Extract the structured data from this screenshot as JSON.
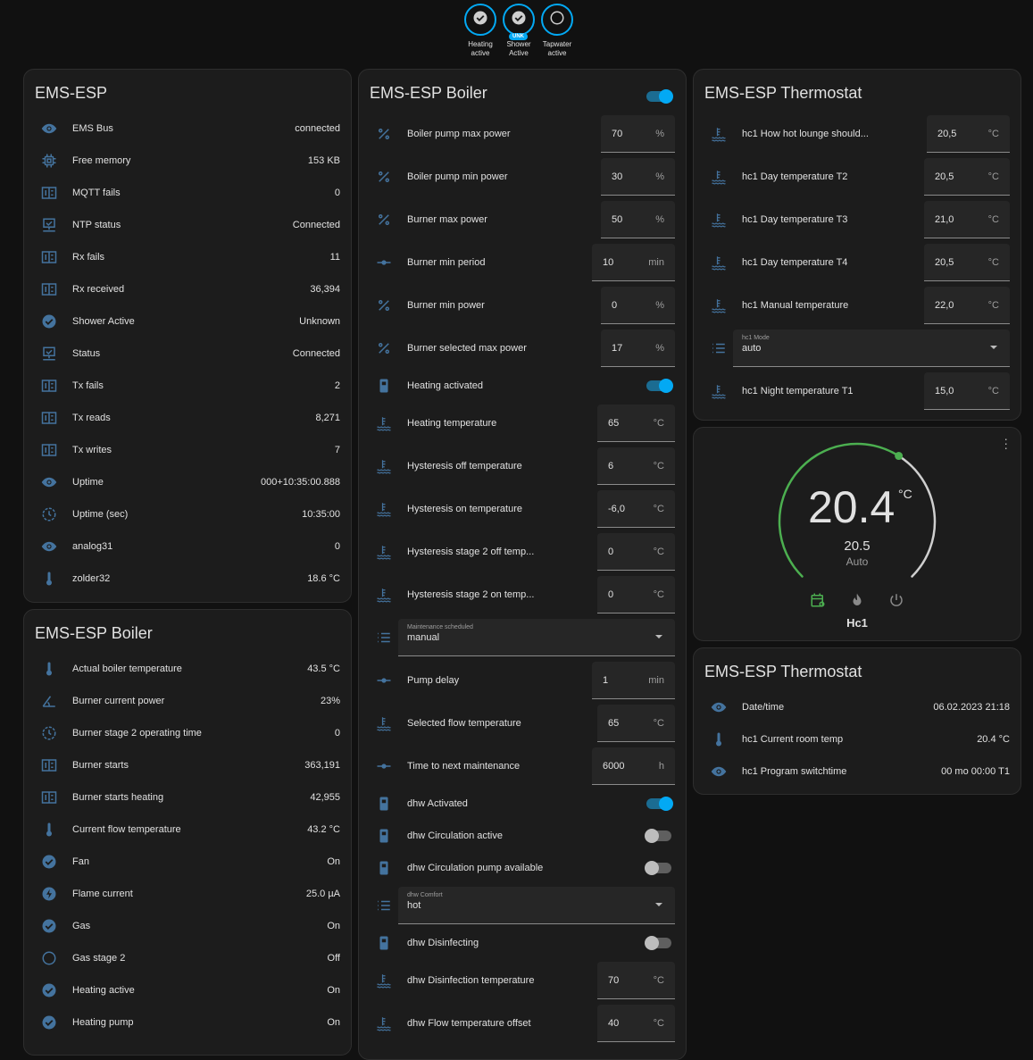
{
  "colors": {
    "icon": "#44739e",
    "accent": "#03a9f4",
    "heat": "#4caf50"
  },
  "badges": [
    {
      "label": "Heating active",
      "icon": "check-circle"
    },
    {
      "label": "Shower Active",
      "icon": "check-circle",
      "tag": "UNK"
    },
    {
      "label": "Tapwater active",
      "icon": "circle-outline"
    }
  ],
  "col1": {
    "card1": {
      "title": "EMS-ESP",
      "rows": [
        {
          "icon": "eye",
          "name": "EMS Bus",
          "value": "connected"
        },
        {
          "icon": "chip",
          "name": "Free memory",
          "value": "153 KB"
        },
        {
          "icon": "counter",
          "name": "MQTT fails",
          "value": "0"
        },
        {
          "icon": "monitor-check",
          "name": "NTP status",
          "value": "Connected"
        },
        {
          "icon": "counter",
          "name": "Rx fails",
          "value": "11"
        },
        {
          "icon": "counter",
          "name": "Rx received",
          "value": "36,394"
        },
        {
          "icon": "check-circle",
          "name": "Shower Active",
          "value": "Unknown"
        },
        {
          "icon": "monitor-check",
          "name": "Status",
          "value": "Connected"
        },
        {
          "icon": "counter",
          "name": "Tx fails",
          "value": "2"
        },
        {
          "icon": "counter",
          "name": "Tx reads",
          "value": "8,271"
        },
        {
          "icon": "counter",
          "name": "Tx writes",
          "value": "7"
        },
        {
          "icon": "eye",
          "name": "Uptime",
          "value": "000+10:35:00.888"
        },
        {
          "icon": "clock",
          "name": "Uptime (sec)",
          "value": "10:35:00"
        },
        {
          "icon": "eye",
          "name": "analog31",
          "value": "0"
        },
        {
          "icon": "thermometer",
          "name": "zolder32",
          "value": "18.6 °C"
        }
      ]
    },
    "card2": {
      "title": "EMS-ESP Boiler",
      "rows": [
        {
          "icon": "thermometer",
          "name": "Actual boiler temperature",
          "value": "43.5 °C"
        },
        {
          "icon": "angle",
          "name": "Burner current power",
          "value": "23%"
        },
        {
          "icon": "clock",
          "name": "Burner stage 2 operating time",
          "value": "0"
        },
        {
          "icon": "counter",
          "name": "Burner starts",
          "value": "363,191"
        },
        {
          "icon": "counter",
          "name": "Burner starts heating",
          "value": "42,955"
        },
        {
          "icon": "thermometer",
          "name": "Current flow temperature",
          "value": "43.2 °C"
        },
        {
          "icon": "check-circle",
          "name": "Fan",
          "value": "On"
        },
        {
          "icon": "flash-circle",
          "name": "Flame current",
          "value": "25.0 µA"
        },
        {
          "icon": "check-circle",
          "name": "Gas",
          "value": "On"
        },
        {
          "icon": "circle-outline",
          "name": "Gas stage 2",
          "value": "Off"
        },
        {
          "icon": "check-circle",
          "name": "Heating active",
          "value": "On"
        },
        {
          "icon": "check-circle",
          "name": "Heating pump",
          "value": "On"
        }
      ]
    }
  },
  "col2": {
    "title": "EMS-ESP Boiler",
    "header_toggle": true,
    "rows": [
      {
        "type": "num",
        "icon": "percent",
        "name": "Boiler pump max power",
        "value": "70",
        "unit": "%"
      },
      {
        "type": "num",
        "icon": "percent",
        "name": "Boiler pump min power",
        "value": "30",
        "unit": "%"
      },
      {
        "type": "num",
        "icon": "percent",
        "name": "Burner max power",
        "value": "50",
        "unit": "%"
      },
      {
        "type": "num",
        "icon": "ray",
        "name": "Burner min period",
        "value": "10",
        "unit": "min"
      },
      {
        "type": "num",
        "icon": "percent",
        "name": "Burner min power",
        "value": "0",
        "unit": "%"
      },
      {
        "type": "num",
        "icon": "percent",
        "name": "Burner selected max power",
        "value": "17",
        "unit": "%"
      },
      {
        "type": "toggle",
        "icon": "boiler",
        "name": "Heating activated",
        "on": true
      },
      {
        "type": "num",
        "icon": "water-thermometer",
        "name": "Heating temperature",
        "value": "65",
        "unit": "°C"
      },
      {
        "type": "num",
        "icon": "water-thermometer",
        "name": "Hysteresis off temperature",
        "value": "6",
        "unit": "°C"
      },
      {
        "type": "num",
        "icon": "water-thermometer",
        "name": "Hysteresis on temperature",
        "value": "-6,0",
        "unit": "°C"
      },
      {
        "type": "num",
        "icon": "water-thermometer",
        "name": "Hysteresis stage 2 off temp...",
        "value": "0",
        "unit": "°C"
      },
      {
        "type": "num",
        "icon": "water-thermometer",
        "name": "Hysteresis stage 2 on temp...",
        "value": "0",
        "unit": "°C"
      },
      {
        "type": "select",
        "icon": "list",
        "name": "Maintenance scheduled",
        "value": "manual"
      },
      {
        "type": "num",
        "icon": "ray",
        "name": "Pump delay",
        "value": "1",
        "unit": "min"
      },
      {
        "type": "num",
        "icon": "water-thermometer",
        "name": "Selected flow temperature",
        "value": "65",
        "unit": "°C"
      },
      {
        "type": "num",
        "icon": "ray",
        "name": "Time to next maintenance",
        "value": "6000",
        "unit": "h"
      },
      {
        "type": "toggle",
        "icon": "boiler",
        "name": "dhw Activated",
        "on": true
      },
      {
        "type": "toggle",
        "icon": "boiler",
        "name": "dhw Circulation active",
        "on": false
      },
      {
        "type": "toggle",
        "icon": "boiler",
        "name": "dhw Circulation pump available",
        "on": false
      },
      {
        "type": "select",
        "icon": "list",
        "name": "dhw Comfort",
        "value": "hot"
      },
      {
        "type": "toggle",
        "icon": "boiler",
        "name": "dhw Disinfecting",
        "on": false
      },
      {
        "type": "num",
        "icon": "water-thermometer",
        "name": "dhw Disinfection temperature",
        "value": "70",
        "unit": "°C"
      },
      {
        "type": "num",
        "icon": "water-thermometer",
        "name": "dhw Flow temperature offset",
        "value": "40",
        "unit": "°C"
      }
    ]
  },
  "col3": {
    "card1": {
      "title": "EMS-ESP Thermostat",
      "rows": [
        {
          "type": "num",
          "icon": "water-thermometer",
          "name": "hc1 How hot lounge should...",
          "value": "20,5",
          "unit": "°C",
          "narrow": true
        },
        {
          "type": "num",
          "icon": "water-thermometer",
          "name": "hc1 Day temperature T2",
          "value": "20,5",
          "unit": "°C"
        },
        {
          "type": "num",
          "icon": "water-thermometer",
          "name": "hc1 Day temperature T3",
          "value": "21,0",
          "unit": "°C"
        },
        {
          "type": "num",
          "icon": "water-thermometer",
          "name": "hc1 Day temperature T4",
          "value": "20,5",
          "unit": "°C"
        },
        {
          "type": "num",
          "icon": "water-thermometer",
          "name": "hc1 Manual temperature",
          "value": "22,0",
          "unit": "°C"
        },
        {
          "type": "select",
          "icon": "list",
          "name": "hc1 Mode",
          "value": "auto"
        },
        {
          "type": "num",
          "icon": "water-thermometer",
          "name": "hc1 Night temperature T1",
          "value": "15,0",
          "unit": "°C"
        }
      ]
    },
    "thermostat": {
      "current": "20.4",
      "unit": "°C",
      "target": "20.5",
      "mode": "Auto",
      "name": "Hc1",
      "min": 5,
      "max": 30,
      "target_value": 20.5,
      "modes": [
        "calendar-sync",
        "fire",
        "power"
      ],
      "active_mode": "calendar-sync"
    },
    "card2": {
      "title": "EMS-ESP Thermostat",
      "rows": [
        {
          "icon": "eye",
          "name": "Date/time",
          "value": "06.02.2023 21:18"
        },
        {
          "icon": "thermometer",
          "name": "hc1 Current room temp",
          "value": "20.4 °C"
        },
        {
          "icon": "eye",
          "name": "hc1 Program switchtime",
          "value": "00 mo 00:00 T1"
        }
      ]
    }
  }
}
